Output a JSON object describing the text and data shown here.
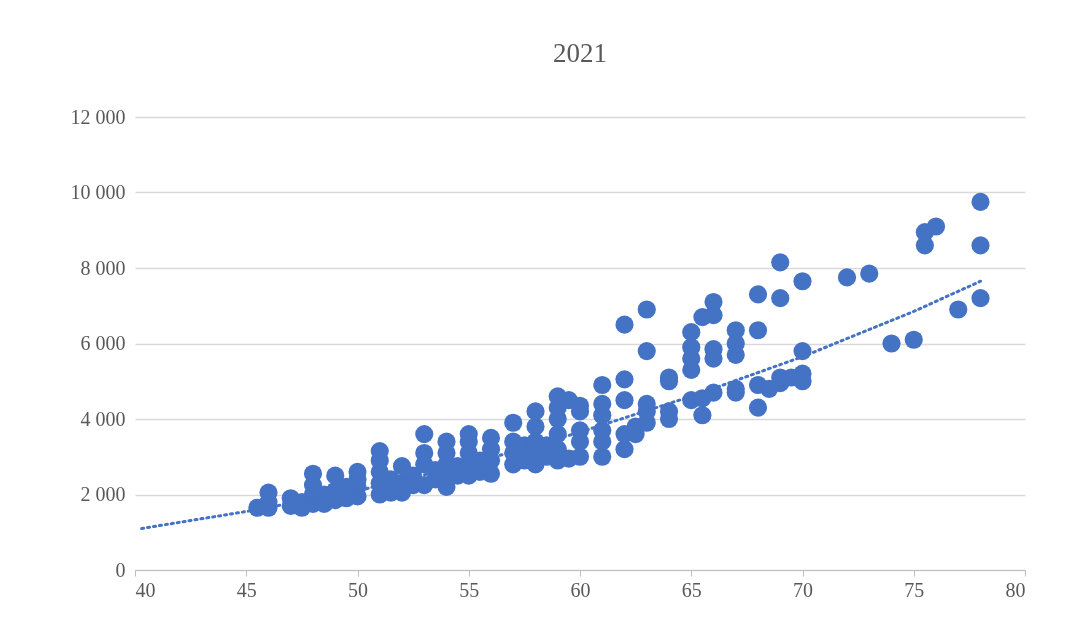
{
  "chart_data": {
    "type": "scatter",
    "title": "2021",
    "xlim": [
      40,
      80
    ],
    "xticks": [
      40,
      45,
      50,
      55,
      60,
      65,
      70,
      75,
      80
    ],
    "ylim": [
      0,
      12000
    ],
    "yticks": [
      {
        "value": 0,
        "label": "0"
      },
      {
        "value": 2000,
        "label": "2 000"
      },
      {
        "value": 4000,
        "label": "4 000"
      },
      {
        "value": 6000,
        "label": "6 000"
      },
      {
        "value": 8000,
        "label": "8 000"
      },
      {
        "value": 10000,
        "label": "10 000"
      },
      {
        "value": 12000,
        "label": "12 000"
      }
    ],
    "grid": "y",
    "marker": "circle",
    "series": [
      {
        "color": "#4472c4",
        "x": [
          45.5,
          46,
          46,
          46,
          47,
          47,
          47.5,
          47.5,
          48,
          48,
          48,
          48,
          48.5,
          48.5,
          49,
          49,
          49,
          49.5,
          49.5,
          50,
          50,
          50,
          50,
          51,
          51,
          51,
          51,
          51,
          51.5,
          51.5,
          52,
          52,
          52,
          52.5,
          52.5,
          53,
          53,
          53,
          53,
          53.5,
          53.5,
          54,
          54,
          54,
          54,
          54,
          54.5,
          54.5,
          55,
          55,
          55,
          55,
          55,
          55.5,
          55.5,
          56,
          56,
          56,
          56,
          57,
          57,
          57,
          57,
          57.5,
          57.5,
          58,
          58,
          58,
          58,
          58,
          58.5,
          58.5,
          59,
          59,
          59,
          59,
          59,
          59,
          59.5,
          59.5,
          60,
          60,
          60,
          60,
          60,
          61,
          61,
          61,
          61,
          61,
          61,
          62,
          62,
          62,
          62,
          62,
          62.5,
          62.5,
          63,
          63,
          63,
          63,
          63,
          64,
          64,
          64,
          64,
          65,
          65,
          65,
          65,
          65,
          65.5,
          65.5,
          65.5,
          66,
          66,
          66,
          66,
          66,
          67,
          67,
          67,
          67,
          67,
          68,
          68,
          68,
          68,
          68.5,
          69,
          69,
          69,
          69,
          69.5,
          70,
          70,
          70,
          70,
          72,
          73,
          74,
          75,
          75.5,
          75.5,
          76,
          77,
          78,
          78,
          78
        ],
        "values": [
          1650,
          1650,
          1800,
          2050,
          1700,
          1900,
          1650,
          1800,
          1750,
          2000,
          2250,
          2550,
          1750,
          2000,
          1850,
          2100,
          2500,
          1900,
          2200,
          1950,
          2200,
          2400,
          2600,
          2000,
          2300,
          2600,
          2900,
          3150,
          2050,
          2400,
          2050,
          2300,
          2750,
          2250,
          2500,
          2250,
          2800,
          3100,
          3600,
          2400,
          2650,
          2200,
          2500,
          2800,
          3100,
          3400,
          2500,
          2750,
          2500,
          2800,
          3100,
          3400,
          3600,
          2600,
          2900,
          2550,
          2900,
          3200,
          3500,
          2800,
          3100,
          3400,
          3900,
          2900,
          3300,
          2800,
          3100,
          3400,
          3800,
          4200,
          3000,
          3300,
          2900,
          3200,
          3600,
          4000,
          4300,
          4600,
          2950,
          4500,
          3000,
          3400,
          3700,
          4200,
          4350,
          3000,
          3400,
          3700,
          4100,
          4400,
          4900,
          3200,
          3600,
          4500,
          5050,
          6500,
          3600,
          3800,
          3900,
          4200,
          4400,
          5800,
          6900,
          4000,
          4200,
          5000,
          5100,
          4500,
          5300,
          5600,
          5900,
          6300,
          4100,
          4550,
          6700,
          4700,
          5600,
          5850,
          6750,
          7100,
          4700,
          4800,
          5700,
          6000,
          6350,
          4300,
          4900,
          6350,
          7300,
          4800,
          4950,
          5100,
          7200,
          8150,
          5100,
          5000,
          5200,
          5800,
          7650,
          7750,
          7850,
          6000,
          6100,
          8600,
          8950,
          9100,
          6900,
          7200,
          8600,
          9750
        ]
      },
      {
        "type": "line",
        "color": "#4472c4",
        "line_style": "dotted",
        "marker": "none",
        "x": [
          40.3,
          45,
          50,
          55,
          60,
          65,
          70,
          75,
          78
        ],
        "values": [
          1100,
          1550,
          2100,
          2800,
          3650,
          4600,
          5650,
          6850,
          7650
        ]
      }
    ]
  }
}
